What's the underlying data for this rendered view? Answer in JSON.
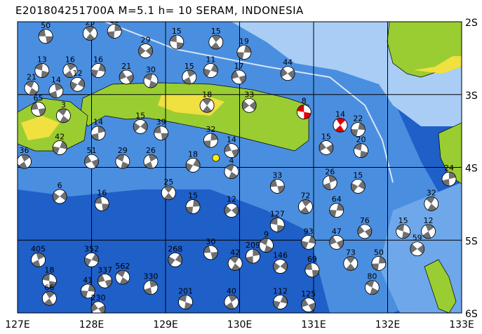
{
  "title": "E201804251700A M=5.1 h= 10 SERAM, INDONESIA",
  "map": {
    "lon_range": [
      127,
      133
    ],
    "lat_range": [
      -2,
      -6
    ],
    "lon_labels": [
      "127E",
      "128E",
      "129E",
      "130E",
      "131E",
      "132E",
      "133E"
    ],
    "lat_labels": [
      "2S",
      "3S",
      "4S",
      "5S",
      "6S"
    ],
    "colors": {
      "deep_sea": "#1f5fc8",
      "mid_sea": "#4a8ee0",
      "shallow_sea": "#a9cdf5",
      "lowland": "#9acd32",
      "highland": "#f0e040",
      "peak": "#e07030",
      "mechanism_fill": "#707070",
      "highlight": "#e00000",
      "epicenter": "#ffee00"
    },
    "epicenter": {
      "lon": 129.68,
      "lat": -3.87
    },
    "events": [
      {
        "lon": 127.38,
        "lat": -2.2,
        "depth": "50"
      },
      {
        "lon": 127.98,
        "lat": -2.16,
        "depth": "23"
      },
      {
        "lon": 128.31,
        "lat": -2.13,
        "depth": "13"
      },
      {
        "lon": 128.73,
        "lat": -2.4,
        "depth": "29"
      },
      {
        "lon": 129.15,
        "lat": -2.28,
        "depth": "15"
      },
      {
        "lon": 129.68,
        "lat": -2.28,
        "depth": "15"
      },
      {
        "lon": 130.06,
        "lat": -2.42,
        "depth": "19"
      },
      {
        "lon": 130.65,
        "lat": -2.71,
        "depth": "44"
      },
      {
        "lon": 127.33,
        "lat": -2.67,
        "depth": "13"
      },
      {
        "lon": 127.71,
        "lat": -2.67,
        "depth": "16"
      },
      {
        "lon": 128.09,
        "lat": -2.67,
        "depth": "16"
      },
      {
        "lon": 128.47,
        "lat": -2.76,
        "depth": "21"
      },
      {
        "lon": 128.8,
        "lat": -2.81,
        "depth": "30"
      },
      {
        "lon": 129.32,
        "lat": -2.76,
        "depth": "15"
      },
      {
        "lon": 129.61,
        "lat": -2.67,
        "depth": "11"
      },
      {
        "lon": 129.99,
        "lat": -2.76,
        "depth": "17"
      },
      {
        "lon": 127.19,
        "lat": -2.91,
        "depth": "21"
      },
      {
        "lon": 127.52,
        "lat": -2.95,
        "depth": "14"
      },
      {
        "lon": 127.81,
        "lat": -2.86,
        "depth": "12"
      },
      {
        "lon": 127.28,
        "lat": -3.2,
        "depth": "65"
      },
      {
        "lon": 127.62,
        "lat": -3.29,
        "depth": "3"
      },
      {
        "lon": 128.09,
        "lat": -3.53,
        "depth": "14"
      },
      {
        "lon": 128.66,
        "lat": -3.44,
        "depth": "15"
      },
      {
        "lon": 128.94,
        "lat": -3.53,
        "depth": "39"
      },
      {
        "lon": 129.56,
        "lat": -3.15,
        "depth": "18"
      },
      {
        "lon": 129.61,
        "lat": -3.63,
        "depth": "32"
      },
      {
        "lon": 130.13,
        "lat": -3.15,
        "depth": "33"
      },
      {
        "lon": 130.87,
        "lat": -3.24,
        "depth": "8",
        "highlight": true
      },
      {
        "lon": 131.36,
        "lat": -3.42,
        "depth": "14",
        "highlight": true
      },
      {
        "lon": 131.6,
        "lat": -3.48,
        "depth": "22"
      },
      {
        "lon": 131.17,
        "lat": -3.73,
        "depth": "15"
      },
      {
        "lon": 131.64,
        "lat": -3.77,
        "depth": "20"
      },
      {
        "lon": 127.09,
        "lat": -3.92,
        "depth": "36"
      },
      {
        "lon": 127.57,
        "lat": -3.73,
        "depth": "42"
      },
      {
        "lon": 128.0,
        "lat": -3.92,
        "depth": "51"
      },
      {
        "lon": 128.42,
        "lat": -3.92,
        "depth": "29"
      },
      {
        "lon": 128.8,
        "lat": -3.92,
        "depth": "26"
      },
      {
        "lon": 129.37,
        "lat": -3.97,
        "depth": "18"
      },
      {
        "lon": 129.89,
        "lat": -3.77,
        "depth": "14"
      },
      {
        "lon": 129.89,
        "lat": -4.06,
        "depth": "4"
      },
      {
        "lon": 131.22,
        "lat": -4.21,
        "depth": "26"
      },
      {
        "lon": 131.6,
        "lat": -4.26,
        "depth": "15"
      },
      {
        "lon": 130.51,
        "lat": -4.26,
        "depth": "33"
      },
      {
        "lon": 132.59,
        "lat": -4.5,
        "depth": "32"
      },
      {
        "lon": 132.83,
        "lat": -4.16,
        "depth": "24"
      },
      {
        "lon": 127.57,
        "lat": -4.4,
        "depth": "6"
      },
      {
        "lon": 128.14,
        "lat": -4.5,
        "depth": "16"
      },
      {
        "lon": 129.04,
        "lat": -4.35,
        "depth": "25"
      },
      {
        "lon": 129.37,
        "lat": -4.54,
        "depth": "15"
      },
      {
        "lon": 129.89,
        "lat": -4.59,
        "depth": "12"
      },
      {
        "lon": 130.51,
        "lat": -4.79,
        "depth": "127"
      },
      {
        "lon": 130.89,
        "lat": -4.54,
        "depth": "72"
      },
      {
        "lon": 131.31,
        "lat": -4.59,
        "depth": "64"
      },
      {
        "lon": 131.69,
        "lat": -4.88,
        "depth": "76"
      },
      {
        "lon": 132.21,
        "lat": -4.88,
        "depth": "15"
      },
      {
        "lon": 132.55,
        "lat": -4.88,
        "depth": "12"
      },
      {
        "lon": 130.93,
        "lat": -5.03,
        "depth": "93"
      },
      {
        "lon": 131.31,
        "lat": -5.03,
        "depth": "47"
      },
      {
        "lon": 130.36,
        "lat": -5.07,
        "depth": "9"
      },
      {
        "lon": 127.28,
        "lat": -5.27,
        "depth": "405"
      },
      {
        "lon": 128.0,
        "lat": -5.27,
        "depth": "352"
      },
      {
        "lon": 128.18,
        "lat": -5.56,
        "depth": "337"
      },
      {
        "lon": 128.42,
        "lat": -5.51,
        "depth": "562"
      },
      {
        "lon": 128.8,
        "lat": -5.65,
        "depth": "330"
      },
      {
        "lon": 129.13,
        "lat": -5.27,
        "depth": "268"
      },
      {
        "lon": 129.61,
        "lat": -5.17,
        "depth": "30"
      },
      {
        "lon": 129.94,
        "lat": -5.32,
        "depth": "42"
      },
      {
        "lon": 130.18,
        "lat": -5.22,
        "depth": "209"
      },
      {
        "lon": 130.55,
        "lat": -5.36,
        "depth": "146"
      },
      {
        "lon": 130.98,
        "lat": -5.41,
        "depth": "69"
      },
      {
        "lon": 131.5,
        "lat": -5.32,
        "depth": "73"
      },
      {
        "lon": 131.88,
        "lat": -5.32,
        "depth": "50"
      },
      {
        "lon": 132.4,
        "lat": -5.12,
        "depth": "59"
      },
      {
        "lon": 127.43,
        "lat": -5.56,
        "depth": "18"
      },
      {
        "lon": 127.43,
        "lat": -5.8,
        "depth": "66"
      },
      {
        "lon": 127.95,
        "lat": -5.7,
        "depth": "41"
      },
      {
        "lon": 128.09,
        "lat": -5.94,
        "depth": "230"
      },
      {
        "lon": 129.27,
        "lat": -5.85,
        "depth": "201"
      },
      {
        "lon": 129.89,
        "lat": -5.85,
        "depth": "40"
      },
      {
        "lon": 130.55,
        "lat": -5.85,
        "depth": "112"
      },
      {
        "lon": 130.93,
        "lat": -5.89,
        "depth": "125"
      },
      {
        "lon": 131.79,
        "lat": -5.65,
        "depth": "80"
      }
    ]
  }
}
